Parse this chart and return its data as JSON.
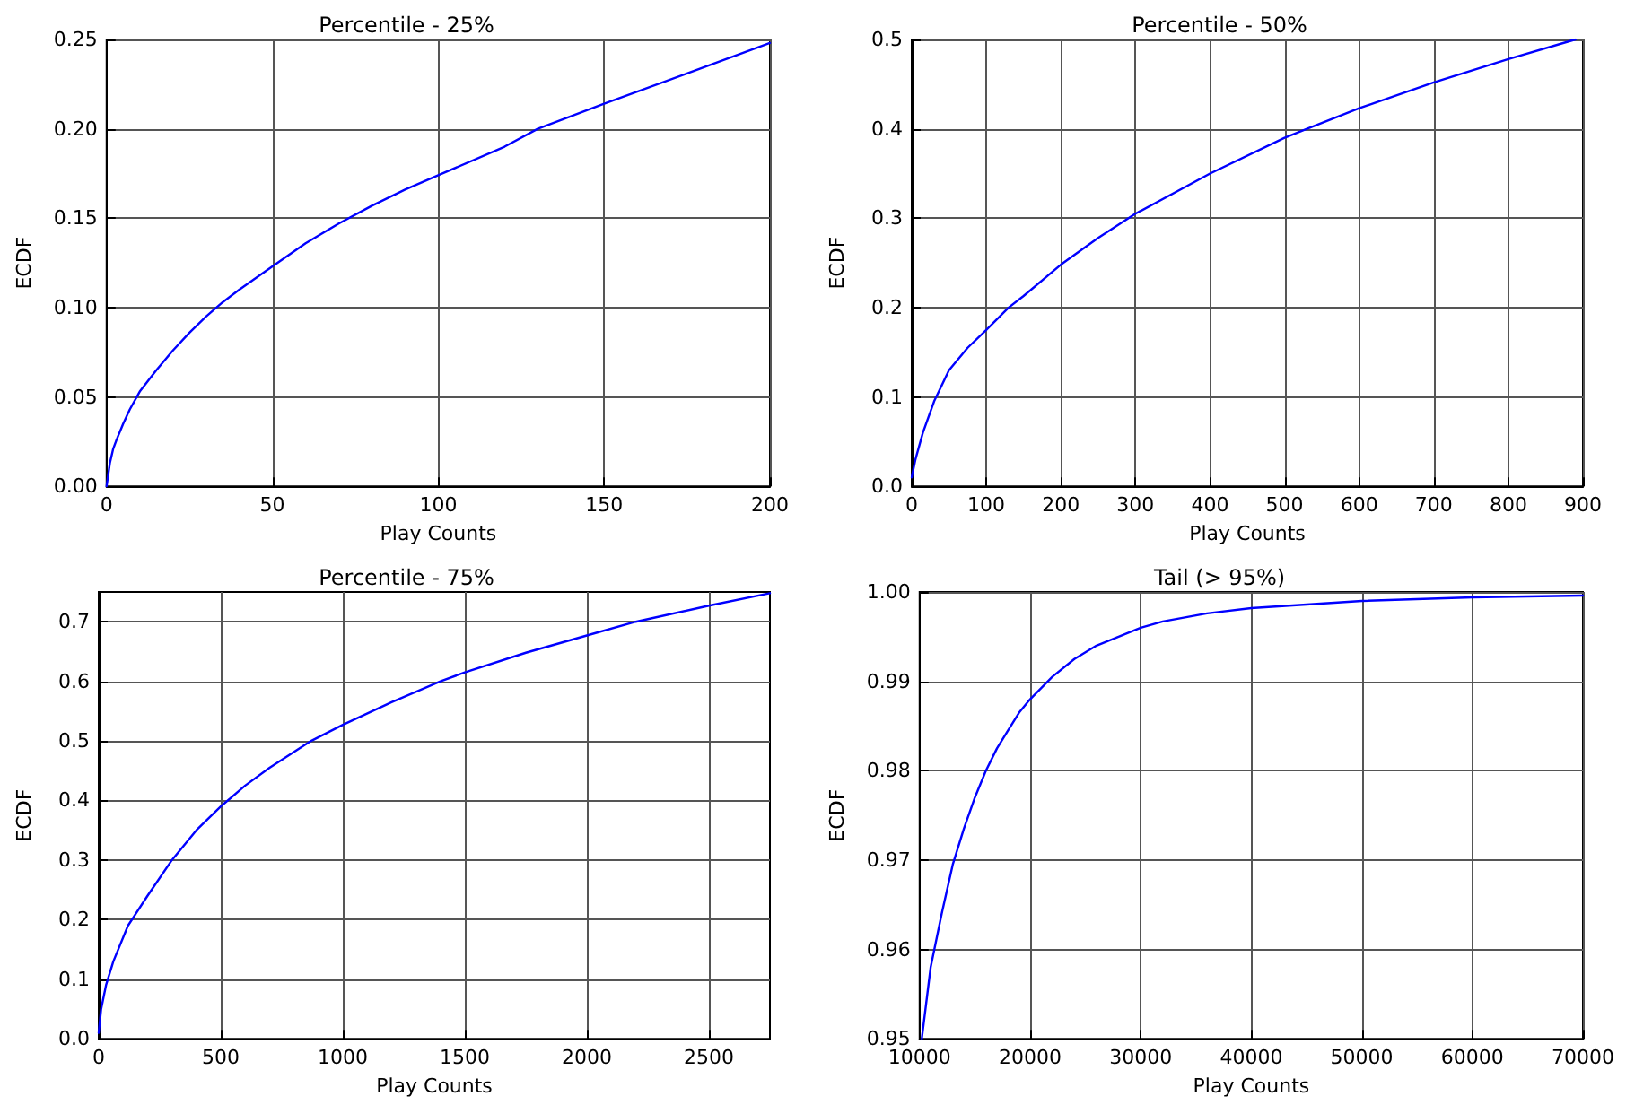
{
  "chart_data": [
    {
      "type": "line",
      "title": "Percentile - 25%",
      "xlabel": "Play Counts",
      "ylabel": "ECDF",
      "grid": true,
      "marker": "none",
      "line_style": "solid",
      "xlim": [
        0,
        200
      ],
      "xticks": [
        0,
        50,
        100,
        150,
        200
      ],
      "ylim": [
        0,
        0.25
      ],
      "yticks": [
        {
          "value": 0,
          "label": "0.00"
        },
        {
          "value": 0.05,
          "label": "0.05"
        },
        {
          "value": 0.1,
          "label": "0.10"
        },
        {
          "value": 0.15,
          "label": "0.15"
        },
        {
          "value": 0.2,
          "label": "0.20"
        },
        {
          "value": 0.25,
          "label": "0.25"
        }
      ],
      "series": [
        {
          "color": "#0000ff",
          "x": [
            0,
            1,
            2,
            3,
            5,
            7,
            10,
            15,
            20,
            25,
            30,
            35,
            40,
            50,
            60,
            70,
            80,
            90,
            100,
            120,
            130,
            150,
            175,
            200
          ],
          "values": [
            0,
            0.013,
            0.021,
            0.026,
            0.035,
            0.043,
            0.053,
            0.065,
            0.076,
            0.086,
            0.095,
            0.103,
            0.11,
            0.123,
            0.136,
            0.147,
            0.157,
            0.166,
            0.174,
            0.19,
            0.2,
            0.214,
            0.231,
            0.248
          ]
        }
      ]
    },
    {
      "type": "line",
      "title": "Percentile - 50%",
      "xlabel": "Play Counts",
      "ylabel": "ECDF",
      "grid": true,
      "marker": "none",
      "line_style": "solid",
      "xlim": [
        0,
        900
      ],
      "xticks": [
        0,
        100,
        200,
        300,
        400,
        500,
        600,
        700,
        800,
        900
      ],
      "ylim": [
        0,
        0.5
      ],
      "yticks": [
        {
          "value": 0,
          "label": "0.0"
        },
        {
          "value": 0.1,
          "label": "0.1"
        },
        {
          "value": 0.2,
          "label": "0.2"
        },
        {
          "value": 0.3,
          "label": "0.3"
        },
        {
          "value": 0.4,
          "label": "0.4"
        },
        {
          "value": 0.5,
          "label": "0.5"
        }
      ],
      "series": [
        {
          "color": "#0000ff",
          "x": [
            0,
            5,
            15,
            30,
            50,
            75,
            100,
            130,
            150,
            200,
            250,
            300,
            400,
            500,
            530,
            600,
            700,
            800,
            890
          ],
          "values": [
            0.01,
            0.03,
            0.06,
            0.095,
            0.13,
            0.155,
            0.175,
            0.2,
            0.213,
            0.248,
            0.278,
            0.305,
            0.35,
            0.39,
            0.4,
            0.423,
            0.452,
            0.478,
            0.5
          ]
        }
      ]
    },
    {
      "type": "line",
      "title": "Percentile - 75%",
      "xlabel": "Play Counts",
      "ylabel": "ECDF",
      "grid": true,
      "marker": "none",
      "line_style": "solid",
      "xlim": [
        0,
        2750
      ],
      "xticks": [
        0,
        500,
        1000,
        1500,
        2000,
        2500
      ],
      "ylim": [
        0,
        0.75
      ],
      "yticks": [
        {
          "value": 0,
          "label": "0.0"
        },
        {
          "value": 0.1,
          "label": "0.1"
        },
        {
          "value": 0.2,
          "label": "0.2"
        },
        {
          "value": 0.3,
          "label": "0.3"
        },
        {
          "value": 0.4,
          "label": "0.4"
        },
        {
          "value": 0.5,
          "label": "0.5"
        },
        {
          "value": 0.6,
          "label": "0.6"
        },
        {
          "value": 0.7,
          "label": "0.7"
        }
      ],
      "series": [
        {
          "color": "#0000ff",
          "x": [
            0,
            10,
            30,
            60,
            120,
            200,
            300,
            400,
            500,
            600,
            700,
            870,
            1000,
            1200,
            1400,
            1500,
            1750,
            2000,
            2200,
            2500,
            2750
          ],
          "values": [
            0.01,
            0.05,
            0.09,
            0.13,
            0.19,
            0.24,
            0.3,
            0.35,
            0.39,
            0.425,
            0.455,
            0.5,
            0.527,
            0.565,
            0.6,
            0.615,
            0.648,
            0.677,
            0.7,
            0.727,
            0.748
          ]
        }
      ]
    },
    {
      "type": "line",
      "title": "Tail (> 95%)",
      "xlabel": "Play Counts",
      "ylabel": "ECDF",
      "grid": true,
      "marker": "none",
      "line_style": "solid",
      "xlim": [
        10000,
        70000
      ],
      "xticks": [
        10000,
        20000,
        30000,
        40000,
        50000,
        60000,
        70000
      ],
      "ylim": [
        0.95,
        1
      ],
      "yticks": [
        {
          "value": 0.95,
          "label": "0.95"
        },
        {
          "value": 0.96,
          "label": "0.96"
        },
        {
          "value": 0.97,
          "label": "0.97"
        },
        {
          "value": 0.98,
          "label": "0.98"
        },
        {
          "value": 0.99,
          "label": "0.99"
        },
        {
          "value": 1,
          "label": "1.00"
        }
      ],
      "series": [
        {
          "color": "#0000ff",
          "x": [
            10200,
            11000,
            12000,
            13000,
            14000,
            15000,
            16000,
            17000,
            18000,
            19000,
            20000,
            22000,
            24000,
            26000,
            28000,
            30000,
            32000,
            36000,
            40000,
            45000,
            50000,
            60000,
            70000
          ],
          "values": [
            0.95,
            0.958,
            0.964,
            0.9695,
            0.9735,
            0.977,
            0.98,
            0.9825,
            0.9845,
            0.9865,
            0.988,
            0.9905,
            0.9925,
            0.994,
            0.995,
            0.996,
            0.9967,
            0.9976,
            0.9982,
            0.9986,
            0.999,
            0.9994,
            0.9996
          ]
        }
      ]
    }
  ]
}
